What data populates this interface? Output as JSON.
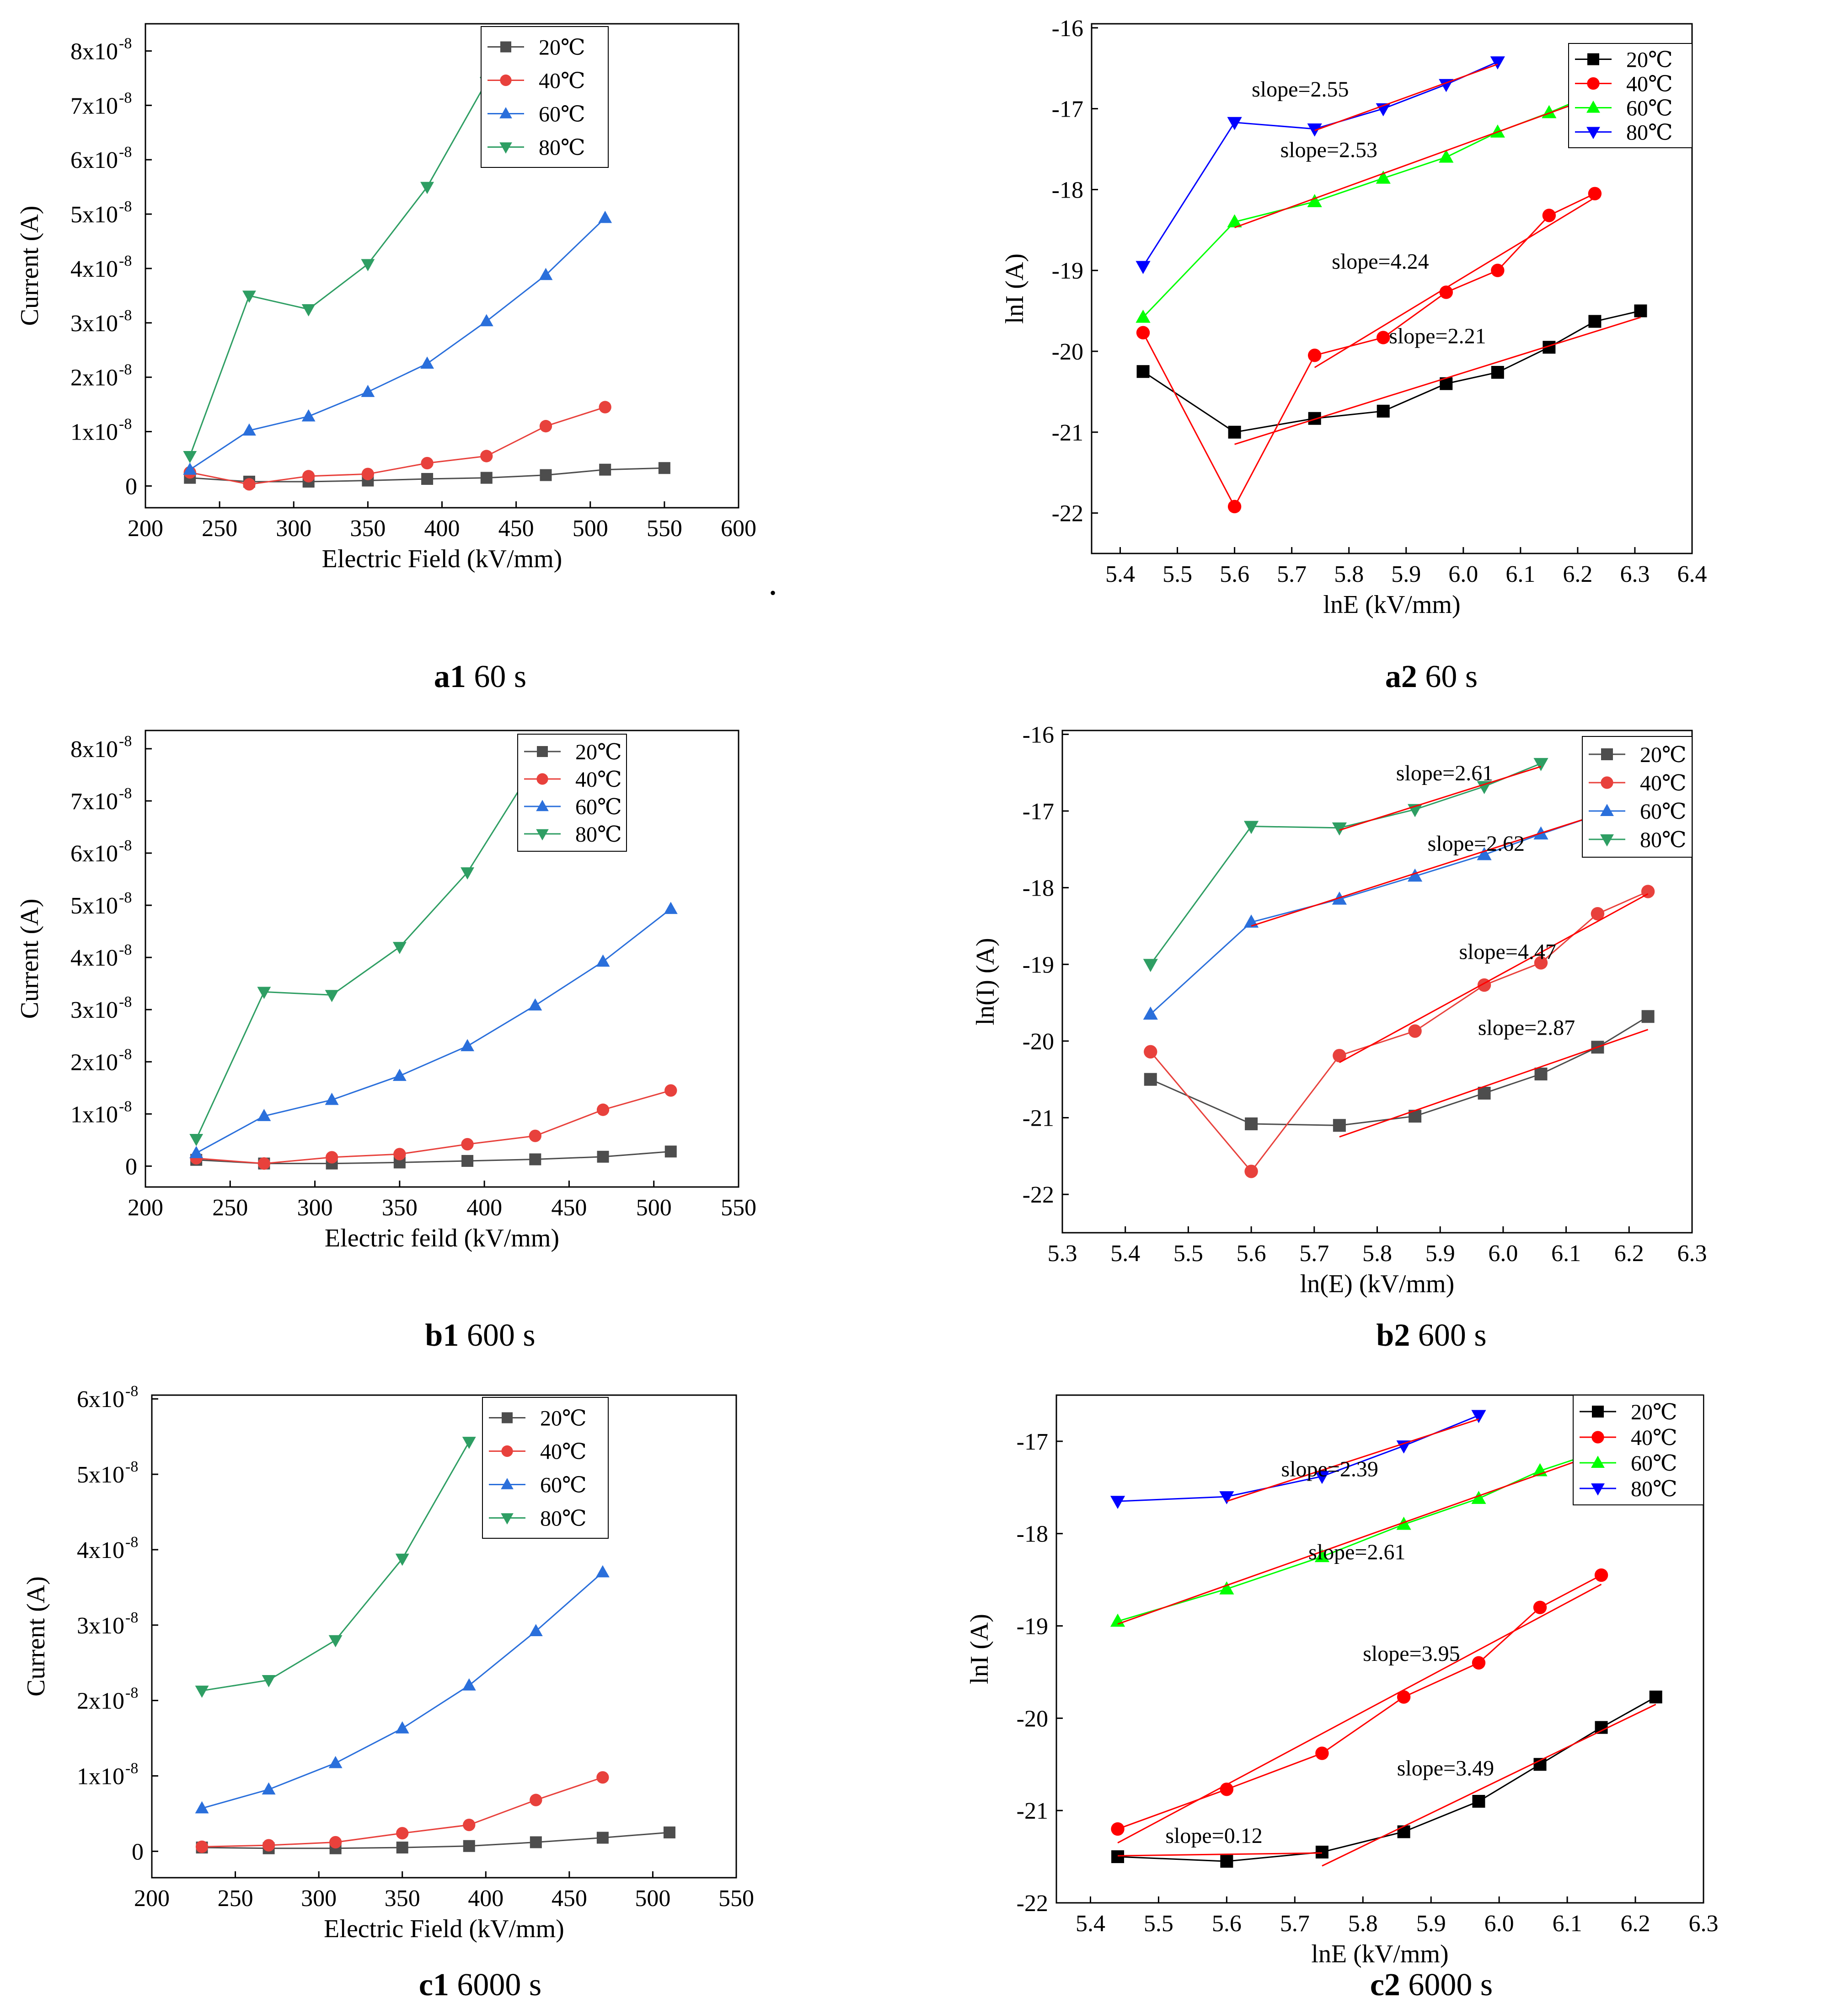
{
  "figure": {
    "stray_mark": "."
  },
  "captions": [
    {
      "id": "a1",
      "bold": "a1",
      "rest": " 60 s"
    },
    {
      "id": "a2",
      "bold": "a2",
      "rest": " 60 s"
    },
    {
      "id": "b1",
      "bold": "b1",
      "rest": " 600 s"
    },
    {
      "id": "b2",
      "bold": "b2",
      "rest": " 600 s"
    },
    {
      "id": "c1",
      "bold": "c1",
      "rest": " 6000 s"
    },
    {
      "id": "c2",
      "bold": "c2",
      "rest": " 6000 s"
    }
  ],
  "colors": {
    "20C": "#4d4d4d",
    "40C": "#e8413c",
    "60C": "#2a6fdb",
    "80C": "#2e9e63",
    "20C_log": "#000000",
    "40C_log": "#ff0000",
    "60C_log": "#00ff00",
    "80C_log": "#0000ff",
    "fit": "#ff0000"
  },
  "chart_data": [
    {
      "id": "a1",
      "type": "line",
      "xlabel": "Electric Field (kV/mm)",
      "ylabel": "Current (A)",
      "xlim": [
        200,
        600
      ],
      "ylim": [
        -0.4,
        8.5
      ],
      "xticks": [
        "200",
        "250",
        "300",
        "350",
        "400",
        "450",
        "500",
        "550",
        "600"
      ],
      "yticks": [
        {
          "v": 0,
          "t": "0"
        },
        {
          "v": 1,
          "t": "1x10",
          "e": "-8"
        },
        {
          "v": 2,
          "t": "2x10",
          "e": "-8"
        },
        {
          "v": 3,
          "t": "3x10",
          "e": "-8"
        },
        {
          "v": 4,
          "t": "4x10",
          "e": "-8"
        },
        {
          "v": 5,
          "t": "5x10",
          "e": "-8"
        },
        {
          "v": 6,
          "t": "6x10",
          "e": "-8"
        },
        {
          "v": 7,
          "t": "7x10",
          "e": "-8"
        },
        {
          "v": 8,
          "t": "8x10",
          "e": "-8"
        }
      ],
      "y_unit_note": "values in units of 1e-8 A",
      "legend": "top-right",
      "series": [
        {
          "name": "20℃",
          "marker": "square",
          "x": [
            230,
            270,
            310,
            350,
            390,
            430,
            470,
            510,
            550
          ],
          "y": [
            0.15,
            0.08,
            0.08,
            0.1,
            0.13,
            0.15,
            0.2,
            0.3,
            0.33
          ]
        },
        {
          "name": "40℃",
          "marker": "circle",
          "x": [
            230,
            270,
            310,
            350,
            390,
            430,
            470,
            510
          ],
          "y": [
            0.25,
            0.03,
            0.18,
            0.22,
            0.42,
            0.55,
            1.1,
            1.45
          ]
        },
        {
          "name": "60℃",
          "marker": "triangle-up",
          "x": [
            230,
            270,
            310,
            350,
            390,
            430,
            470,
            510
          ],
          "y": [
            0.3,
            1.02,
            1.28,
            1.73,
            2.25,
            3.03,
            3.88,
            4.93
          ]
        },
        {
          "name": "80℃",
          "marker": "triangle-down",
          "x": [
            230,
            270,
            310,
            350,
            390,
            430
          ],
          "y": [
            0.55,
            3.5,
            3.25,
            4.08,
            5.5,
            7.43
          ]
        }
      ]
    },
    {
      "id": "a2",
      "type": "line",
      "xlabel": "lnE (kV/mm)",
      "ylabel": "lnI (A)",
      "xlim": [
        5.35,
        6.4
      ],
      "ylim": [
        -22.5,
        -15.95
      ],
      "xticks": [
        "5.4",
        "5.5",
        "5.6",
        "5.7",
        "5.8",
        "5.9",
        "6.0",
        "6.1",
        "6.2",
        "6.3",
        "6.4"
      ],
      "yticks": [
        {
          "v": -16,
          "t": "-16"
        },
        {
          "v": -17,
          "t": "-17"
        },
        {
          "v": -18,
          "t": "-18"
        },
        {
          "v": -19,
          "t": "-19"
        },
        {
          "v": -20,
          "t": "-20"
        },
        {
          "v": -21,
          "t": "-21"
        },
        {
          "v": -22,
          "t": "-22"
        }
      ],
      "legend": "top-right",
      "series": [
        {
          "name": "20℃",
          "marker": "square",
          "x": [
            5.44,
            5.6,
            5.74,
            5.86,
            5.97,
            6.06,
            6.15,
            6.23,
            6.31
          ],
          "y": [
            -20.25,
            -21.0,
            -20.83,
            -20.74,
            -20.4,
            -20.26,
            -19.95,
            -19.63,
            -19.5
          ]
        },
        {
          "name": "40℃",
          "marker": "circle",
          "x": [
            5.44,
            5.6,
            5.74,
            5.86,
            5.97,
            6.06,
            6.15,
            6.23
          ],
          "y": [
            -19.77,
            -21.92,
            -20.05,
            -19.83,
            -19.27,
            -19.0,
            -18.32,
            -18.05
          ]
        },
        {
          "name": "60℃",
          "marker": "triangle-up",
          "x": [
            5.44,
            5.6,
            5.74,
            5.86,
            5.97,
            6.06,
            6.15,
            6.23
          ],
          "y": [
            -19.58,
            -18.4,
            -18.15,
            -17.86,
            -17.6,
            -17.29,
            -17.05,
            -16.81
          ]
        },
        {
          "name": "80℃",
          "marker": "triangle-down",
          "x": [
            5.44,
            5.6,
            5.74,
            5.86,
            5.97,
            6.06
          ],
          "y": [
            -18.95,
            -17.17,
            -17.25,
            -17.0,
            -16.7,
            -16.42
          ]
        }
      ],
      "fits": [
        {
          "x": [
            5.6,
            6.31
          ],
          "y": [
            -21.15,
            -19.58
          ]
        },
        {
          "x": [
            5.74,
            6.23
          ],
          "y": [
            -20.2,
            -18.1
          ]
        },
        {
          "x": [
            5.6,
            6.23
          ],
          "y": [
            -18.47,
            -16.85
          ]
        },
        {
          "x": [
            5.74,
            6.06
          ],
          "y": [
            -17.27,
            -16.45
          ]
        }
      ],
      "annotations": [
        {
          "text": "slope=2.55",
          "x": 5.63,
          "y": -16.85
        },
        {
          "text": "slope=2.53",
          "x": 5.68,
          "y": -17.6
        },
        {
          "text": "slope=4.24",
          "x": 5.77,
          "y": -18.98
        },
        {
          "text": "slope=2.21",
          "x": 5.87,
          "y": -19.9
        }
      ]
    },
    {
      "id": "b1",
      "type": "line",
      "xlabel": "Electric feild (kV/mm)",
      "ylabel": "Current (A)",
      "xlim": [
        200,
        550
      ],
      "ylim": [
        -0.4,
        8.35
      ],
      "xticks": [
        "200",
        "250",
        "300",
        "350",
        "400",
        "450",
        "500",
        "550"
      ],
      "yticks": [
        {
          "v": 0,
          "t": "0"
        },
        {
          "v": 1,
          "t": "1x10",
          "e": "-8"
        },
        {
          "v": 2,
          "t": "2x10",
          "e": "-8"
        },
        {
          "v": 3,
          "t": "3x10",
          "e": "-8"
        },
        {
          "v": 4,
          "t": "4x10",
          "e": "-8"
        },
        {
          "v": 5,
          "t": "5x10",
          "e": "-8"
        },
        {
          "v": 6,
          "t": "6x10",
          "e": "-8"
        },
        {
          "v": 7,
          "t": "7x10",
          "e": "-8"
        },
        {
          "v": 8,
          "t": "8x10",
          "e": "-8"
        }
      ],
      "y_unit_note": "values in units of 1e-8 A",
      "legend": "top-right",
      "series": [
        {
          "name": "20℃",
          "marker": "square",
          "x": [
            230,
            270,
            310,
            350,
            390,
            430,
            470,
            510
          ],
          "y": [
            0.12,
            0.05,
            0.05,
            0.07,
            0.1,
            0.13,
            0.18,
            0.28
          ]
        },
        {
          "name": "40℃",
          "marker": "circle",
          "x": [
            230,
            270,
            310,
            350,
            390,
            430,
            470,
            510
          ],
          "y": [
            0.15,
            0.05,
            0.17,
            0.23,
            0.42,
            0.58,
            1.08,
            1.45
          ]
        },
        {
          "name": "60℃",
          "marker": "triangle-up",
          "x": [
            230,
            270,
            310,
            350,
            390,
            430,
            470,
            510
          ],
          "y": [
            0.25,
            0.96,
            1.27,
            1.73,
            2.3,
            3.08,
            3.92,
            4.93
          ]
        },
        {
          "name": "80℃",
          "marker": "triangle-down",
          "x": [
            230,
            270,
            310,
            350,
            390,
            430
          ],
          "y": [
            0.52,
            3.34,
            3.28,
            4.2,
            5.63,
            7.7
          ]
        }
      ]
    },
    {
      "id": "b2",
      "type": "line",
      "xlabel": "ln(E) (kV/mm)",
      "ylabel": "ln(I) (A)",
      "xlim": [
        5.3,
        6.3
      ],
      "ylim": [
        -22.5,
        -15.95
      ],
      "xticks": [
        "5.3",
        "5.4",
        "5.5",
        "5.6",
        "5.7",
        "5.8",
        "5.9",
        "6.0",
        "6.1",
        "6.2",
        "6.3"
      ],
      "yticks": [
        {
          "v": -16,
          "t": "-16"
        },
        {
          "v": -17,
          "t": "-17"
        },
        {
          "v": -18,
          "t": "-18"
        },
        {
          "v": -19,
          "t": "-19"
        },
        {
          "v": -20,
          "t": "-20"
        },
        {
          "v": -21,
          "t": "-21"
        },
        {
          "v": -22,
          "t": "-22"
        }
      ],
      "legend": "top-right",
      "series": [
        {
          "name": "20℃",
          "marker": "square",
          "x": [
            5.44,
            5.6,
            5.74,
            5.86,
            5.97,
            6.06,
            6.15,
            6.23
          ],
          "y": [
            -20.5,
            -21.08,
            -21.1,
            -20.98,
            -20.68,
            -20.43,
            -20.08,
            -19.68
          ]
        },
        {
          "name": "40℃",
          "marker": "circle",
          "x": [
            5.44,
            5.6,
            5.74,
            5.86,
            5.97,
            6.06,
            6.15,
            6.23
          ],
          "y": [
            -20.14,
            -21.7,
            -20.19,
            -19.87,
            -19.27,
            -18.98,
            -18.34,
            -18.05
          ]
        },
        {
          "name": "60℃",
          "marker": "triangle-up",
          "x": [
            5.44,
            5.6,
            5.74,
            5.86,
            5.97,
            6.06,
            6.15,
            6.23
          ],
          "y": [
            -19.65,
            -18.45,
            -18.15,
            -17.85,
            -17.57,
            -17.3,
            -17.05,
            -16.82
          ]
        },
        {
          "name": "80℃",
          "marker": "triangle-down",
          "x": [
            5.44,
            5.6,
            5.74,
            5.86,
            5.97,
            6.06
          ],
          "y": [
            -19.0,
            -17.2,
            -17.22,
            -16.98,
            -16.68,
            -16.38
          ]
        }
      ],
      "fits": [
        {
          "x": [
            5.74,
            6.23
          ],
          "y": [
            -21.25,
            -19.85
          ]
        },
        {
          "x": [
            5.74,
            6.23
          ],
          "y": [
            -20.28,
            -18.08
          ]
        },
        {
          "x": [
            5.6,
            6.23
          ],
          "y": [
            -18.5,
            -16.84
          ]
        },
        {
          "x": [
            5.74,
            6.06
          ],
          "y": [
            -17.25,
            -16.42
          ]
        }
      ],
      "annotations": [
        {
          "text": "slope=2.61",
          "x": 5.83,
          "y": -16.6
        },
        {
          "text": "slope=2.62",
          "x": 5.88,
          "y": -17.52
        },
        {
          "text": "slope=4.47",
          "x": 5.93,
          "y": -18.93
        },
        {
          "text": "slope=2.87",
          "x": 5.96,
          "y": -19.92
        }
      ]
    },
    {
      "id": "c1",
      "type": "line",
      "xlabel": "Electric Field (kV/mm)",
      "ylabel": "Current (A)",
      "xlim": [
        200,
        550
      ],
      "ylim": [
        -0.35,
        6.05
      ],
      "xticks": [
        "200",
        "250",
        "300",
        "350",
        "400",
        "450",
        "500",
        "550"
      ],
      "yticks": [
        {
          "v": 0,
          "t": "0"
        },
        {
          "v": 1,
          "t": "1x10",
          "e": "-8"
        },
        {
          "v": 2,
          "t": "2x10",
          "e": "-8"
        },
        {
          "v": 3,
          "t": "3x10",
          "e": "-8"
        },
        {
          "v": 4,
          "t": "4x10",
          "e": "-8"
        },
        {
          "v": 5,
          "t": "5x10",
          "e": "-8"
        },
        {
          "v": 6,
          "t": "6x10",
          "e": "-8"
        }
      ],
      "y_unit_note": "values in units of 1e-8 A",
      "legend": "top-right",
      "series": [
        {
          "name": "20℃",
          "marker": "square",
          "x": [
            230,
            270,
            310,
            350,
            390,
            430,
            470,
            510
          ],
          "y": [
            0.05,
            0.04,
            0.04,
            0.05,
            0.07,
            0.12,
            0.18,
            0.25
          ]
        },
        {
          "name": "40℃",
          "marker": "circle",
          "x": [
            230,
            270,
            310,
            350,
            390,
            430,
            470
          ],
          "y": [
            0.06,
            0.08,
            0.12,
            0.24,
            0.35,
            0.68,
            0.98
          ]
        },
        {
          "name": "60℃",
          "marker": "triangle-up",
          "x": [
            230,
            270,
            310,
            350,
            390,
            430,
            470
          ],
          "y": [
            0.57,
            0.82,
            1.17,
            1.63,
            2.2,
            2.92,
            3.7
          ]
        },
        {
          "name": "80℃",
          "marker": "triangle-down",
          "x": [
            230,
            270,
            310,
            350,
            390
          ],
          "y": [
            2.13,
            2.27,
            2.8,
            3.88,
            5.43
          ]
        }
      ]
    },
    {
      "id": "c2",
      "type": "line",
      "xlabel": "lnE (kV/mm)",
      "ylabel": "lnI (A)",
      "xlim": [
        5.35,
        6.3
      ],
      "ylim": [
        -22,
        -16.5
      ],
      "xticks": [
        "5.4",
        "5.5",
        "5.6",
        "5.7",
        "5.8",
        "5.9",
        "6.0",
        "6.1",
        "6.2",
        "6.3"
      ],
      "yticks": [
        {
          "v": -17,
          "t": "-17"
        },
        {
          "v": -18,
          "t": "-18"
        },
        {
          "v": -19,
          "t": "-19"
        },
        {
          "v": -20,
          "t": "-20"
        },
        {
          "v": -21,
          "t": "-21"
        },
        {
          "v": -22,
          "t": "-22"
        }
      ],
      "legend": "top-right",
      "series": [
        {
          "name": "20℃",
          "marker": "square",
          "x": [
            5.44,
            5.6,
            5.74,
            5.86,
            5.97,
            6.06,
            6.15,
            6.23
          ],
          "y": [
            -21.5,
            -21.55,
            -21.45,
            -21.23,
            -20.9,
            -20.5,
            -20.1,
            -19.77
          ]
        },
        {
          "name": "40℃",
          "marker": "circle",
          "x": [
            5.44,
            5.6,
            5.74,
            5.86,
            5.97,
            6.06,
            6.15
          ],
          "y": [
            -21.2,
            -20.77,
            -20.38,
            -19.77,
            -19.4,
            -18.8,
            -18.45
          ]
        },
        {
          "name": "60℃",
          "marker": "triangle-up",
          "x": [
            5.44,
            5.6,
            5.74,
            5.86,
            5.97,
            6.06,
            6.15
          ],
          "y": [
            -18.95,
            -18.6,
            -18.25,
            -17.9,
            -17.62,
            -17.32,
            -17.1
          ]
        },
        {
          "name": "80℃",
          "marker": "triangle-down",
          "x": [
            5.44,
            5.6,
            5.74,
            5.86,
            5.97
          ],
          "y": [
            -17.65,
            -17.6,
            -17.38,
            -17.05,
            -16.72
          ]
        }
      ],
      "fits": [
        {
          "x": [
            5.44,
            5.74
          ],
          "y": [
            -21.49,
            -21.46
          ]
        },
        {
          "x": [
            5.74,
            6.23
          ],
          "y": [
            -21.6,
            -19.85
          ]
        },
        {
          "x": [
            5.44,
            6.15
          ],
          "y": [
            -21.35,
            -18.55
          ]
        },
        {
          "x": [
            5.44,
            6.15
          ],
          "y": [
            -18.98,
            -17.12
          ]
        },
        {
          "x": [
            5.6,
            5.97
          ],
          "y": [
            -17.65,
            -16.76
          ]
        }
      ],
      "annotations": [
        {
          "text": "slope=2.39",
          "x": 5.68,
          "y": -17.38
        },
        {
          "text": "slope=2.61",
          "x": 5.72,
          "y": -18.28
        },
        {
          "text": "slope=3.95",
          "x": 5.8,
          "y": -19.38
        },
        {
          "text": "slope=3.49",
          "x": 5.85,
          "y": -20.62
        },
        {
          "text": "slope=0.12",
          "x": 5.51,
          "y": -21.35
        }
      ]
    }
  ]
}
